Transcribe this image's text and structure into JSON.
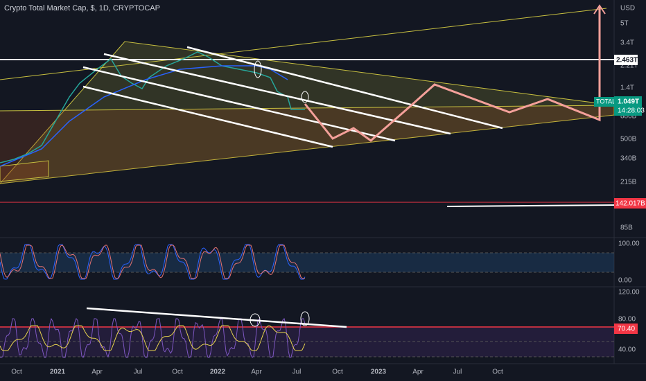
{
  "header": {
    "title": "Crypto Total Market Cap, $, 1D, CRYPTOCAP"
  },
  "price_axis": {
    "unit": "USD",
    "labels": [
      "5T",
      "3.4T",
      "2.21T",
      "1.4T",
      "880B",
      "500B",
      "340B",
      "215B",
      "85B"
    ]
  },
  "price_tags": {
    "level": "2.463T",
    "symbol": "TOTAL",
    "last": "1.049T",
    "countdown": "14:28:03",
    "support": "142.017B"
  },
  "stoch_axis": [
    "100.00",
    "0.00"
  ],
  "rsi_axis": {
    "labels": [
      "120.00",
      "80.00",
      "40.00"
    ],
    "tag": "70.40"
  },
  "time_axis": [
    "Oct",
    "2021",
    "Apr",
    "Jul",
    "Oct",
    "2022",
    "Apr",
    "Jul",
    "Oct",
    "2023",
    "Apr",
    "Jul",
    "Oct"
  ]
}
